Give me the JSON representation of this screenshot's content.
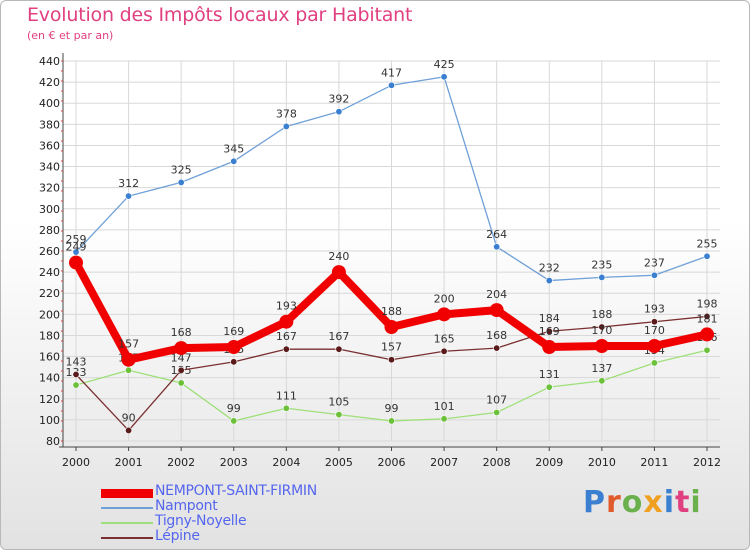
{
  "title": "Evolution des Impôts locaux par Habitant",
  "subtitle": "(en € et par an)",
  "logo": {
    "text": "Proxiti",
    "colors": [
      "#3a7fd0",
      "#e05a2a",
      "#6ab04c",
      "#f0a020",
      "#3a7fd0",
      "#e04080",
      "#6ab04c"
    ]
  },
  "chart_data": {
    "type": "line",
    "title": "Evolution des Impôts locaux par Habitant",
    "subtitle": "(en € et par an)",
    "categories": [
      "2000",
      "2001",
      "2002",
      "2003",
      "2004",
      "2005",
      "2006",
      "2007",
      "2008",
      "2009",
      "2010",
      "2011",
      "2012"
    ],
    "yticks": [
      80,
      100,
      120,
      140,
      160,
      180,
      200,
      220,
      240,
      260,
      280,
      300,
      320,
      340,
      360,
      380,
      400,
      420,
      440
    ],
    "ylim": [
      80,
      440
    ],
    "series": [
      {
        "name": "Nampont",
        "color": "#6fa0d8",
        "marker": "#3a7fd0",
        "values": [
          259,
          312,
          325,
          345,
          378,
          392,
          417,
          425,
          264,
          232,
          235,
          237,
          255
        ]
      },
      {
        "name": "Tigny-Noyelle",
        "color": "#9fe07a",
        "marker": "#6cc03a",
        "values": [
          133,
          147,
          135,
          99,
          111,
          105,
          99,
          101,
          107,
          131,
          137,
          154,
          166
        ]
      },
      {
        "name": "Lépine",
        "color": "#7a3030",
        "marker": "#5a1a1a",
        "values": [
          143,
          90,
          147,
          155,
          167,
          167,
          157,
          165,
          168,
          184,
          188,
          193,
          198
        ]
      },
      {
        "name": "NEMPONT-SAINT-FIRMIN",
        "color": "#f00000",
        "marker": "#f00000",
        "values": [
          249,
          157,
          168,
          169,
          193,
          240,
          188,
          200,
          204,
          169,
          170,
          170,
          181
        ]
      }
    ],
    "legend": [
      "NEMPONT-SAINT-FIRMIN",
      "Nampont",
      "Tigny-Noyelle",
      "Lépine"
    ]
  }
}
